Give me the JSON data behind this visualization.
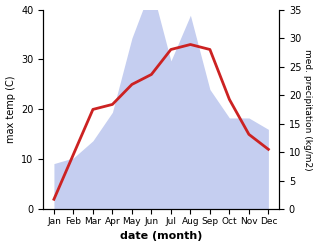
{
  "months": [
    "Jan",
    "Feb",
    "Mar",
    "Apr",
    "May",
    "Jun",
    "Jul",
    "Aug",
    "Sep",
    "Oct",
    "Nov",
    "Dec"
  ],
  "temperature": [
    2,
    11,
    20,
    21,
    25,
    27,
    32,
    33,
    32,
    22,
    15,
    12
  ],
  "precipitation": [
    8,
    9,
    12,
    17,
    30,
    39,
    26,
    34,
    21,
    16,
    16,
    14
  ],
  "temp_color": "#cc2222",
  "precip_color": "#c5cef0",
  "xlabel": "date (month)",
  "ylabel_left": "max temp (C)",
  "ylabel_right": "med. precipitation (kg/m2)",
  "ylim_left": [
    0,
    40
  ],
  "ylim_right": [
    0,
    35
  ],
  "yticks_left": [
    0,
    10,
    20,
    30,
    40
  ],
  "yticks_right": [
    0,
    5,
    10,
    15,
    20,
    25,
    30,
    35
  ],
  "line_width": 2.0
}
